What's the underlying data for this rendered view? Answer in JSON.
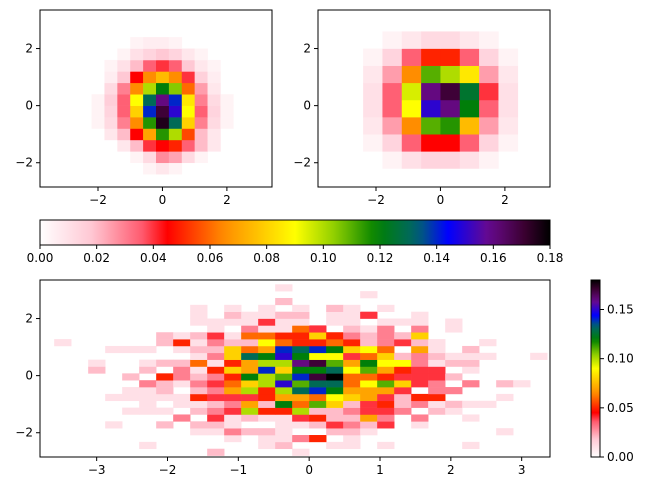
{
  "chart_data": [
    {
      "id": "top-left",
      "type": "heatmap",
      "xlim": [
        -3.8,
        3.4
      ],
      "ylim": [
        -2.85,
        3.35
      ],
      "xticks": [
        -2,
        0,
        2
      ],
      "yticks": [
        -2,
        0,
        2
      ],
      "xticklabels": [
        "−2",
        "0",
        "2"
      ],
      "yticklabels": [
        "−2",
        "0",
        "2"
      ],
      "x0": -3.0,
      "y0": -2.8,
      "bin": 0.4,
      "grid": [
        [
          0,
          0,
          0,
          0,
          0,
          0,
          0,
          0,
          0,
          0,
          0,
          0,
          0,
          0,
          0
        ],
        [
          0,
          0,
          0,
          0,
          0,
          0,
          0.004,
          0.008,
          0.004,
          0,
          0,
          0,
          0,
          0,
          0
        ],
        [
          0,
          0,
          0,
          0,
          0,
          0.004,
          0.012,
          0.028,
          0.024,
          0.012,
          0.004,
          0,
          0,
          0,
          0
        ],
        [
          0,
          0,
          0,
          0,
          0.008,
          0.02,
          0.04,
          0.045,
          0.05,
          0.035,
          0.02,
          0.008,
          0,
          0,
          0
        ],
        [
          0,
          0,
          0,
          0.008,
          0.02,
          0.045,
          0.07,
          0.115,
          0.1,
          0.055,
          0.02,
          0.008,
          0,
          0,
          0
        ],
        [
          0,
          0,
          0.004,
          0.012,
          0.03,
          0.065,
          0.115,
          0.175,
          0.13,
          0.08,
          0.03,
          0.012,
          0.004,
          0,
          0
        ],
        [
          0,
          0,
          0.004,
          0.014,
          0.035,
          0.08,
          0.14,
          0.17,
          0.15,
          0.09,
          0.035,
          0.014,
          0.004,
          0,
          0
        ],
        [
          0,
          0,
          0.004,
          0.016,
          0.035,
          0.09,
          0.13,
          0.16,
          0.14,
          0.085,
          0.03,
          0.012,
          0.004,
          0,
          0
        ],
        [
          0,
          0,
          0,
          0.012,
          0.03,
          0.065,
          0.1,
          0.12,
          0.105,
          0.06,
          0.025,
          0.008,
          0,
          0,
          0
        ],
        [
          0,
          0,
          0,
          0.006,
          0.018,
          0.045,
          0.065,
          0.075,
          0.065,
          0.04,
          0.015,
          0.006,
          0,
          0,
          0
        ],
        [
          0,
          0,
          0,
          0.004,
          0.01,
          0.02,
          0.035,
          0.04,
          0.035,
          0.018,
          0.008,
          0.004,
          0,
          0,
          0
        ],
        [
          0,
          0,
          0,
          0,
          0.004,
          0.01,
          0.014,
          0.018,
          0.014,
          0.008,
          0.004,
          0,
          0,
          0,
          0
        ],
        [
          0,
          0,
          0,
          0,
          0,
          0.004,
          0.006,
          0.006,
          0.004,
          0,
          0,
          0,
          0,
          0,
          0
        ],
        [
          0,
          0,
          0,
          0,
          0,
          0,
          0,
          0,
          0,
          0,
          0,
          0,
          0,
          0,
          0
        ],
        [
          0,
          0,
          0,
          0,
          0,
          0,
          0,
          0,
          0,
          0,
          0,
          0,
          0,
          0,
          0
        ]
      ]
    },
    {
      "id": "top-right",
      "type": "heatmap",
      "xlim": [
        -3.8,
        3.4
      ],
      "ylim": [
        -2.85,
        3.35
      ],
      "xticks": [
        -2,
        0,
        2
      ],
      "yticks": [
        -2,
        0,
        2
      ],
      "xticklabels": [
        "−2",
        "0",
        "2"
      ],
      "yticklabels": [
        "−2",
        "0",
        "2"
      ],
      "x0": -3.0,
      "y0": -2.8,
      "bin": 0.6,
      "grid": [
        [
          0,
          0,
          0,
          0,
          0,
          0,
          0,
          0,
          0,
          0
        ],
        [
          0,
          0,
          0.004,
          0.01,
          0.014,
          0.014,
          0.01,
          0.004,
          0,
          0
        ],
        [
          0,
          0.004,
          0.014,
          0.035,
          0.045,
          0.045,
          0.035,
          0.014,
          0.004,
          0
        ],
        [
          0,
          0.008,
          0.025,
          0.065,
          0.11,
          0.115,
          0.075,
          0.025,
          0.008,
          0
        ],
        [
          0,
          0.01,
          0.035,
          0.09,
          0.15,
          0.16,
          0.12,
          0.035,
          0.01,
          0
        ],
        [
          0,
          0.01,
          0.035,
          0.095,
          0.16,
          0.17,
          0.125,
          0.04,
          0.01,
          0
        ],
        [
          0,
          0.008,
          0.025,
          0.065,
          0.11,
          0.1,
          0.085,
          0.025,
          0.008,
          0
        ],
        [
          0,
          0.004,
          0.014,
          0.035,
          0.05,
          0.05,
          0.035,
          0.014,
          0.004,
          0
        ],
        [
          0,
          0,
          0.004,
          0.008,
          0.012,
          0.012,
          0.008,
          0.004,
          0,
          0
        ],
        [
          0,
          0,
          0,
          0,
          0,
          0,
          0,
          0,
          0,
          0
        ]
      ]
    },
    {
      "id": "bottom",
      "type": "heatmap",
      "xlim": [
        -3.8,
        3.4
      ],
      "ylim": [
        -2.85,
        3.35
      ],
      "xticks": [
        -3,
        -2,
        -1,
        0,
        1,
        2,
        3
      ],
      "yticks": [
        -2,
        0,
        2
      ],
      "xticklabels": [
        "−3",
        "−2",
        "−1",
        "0",
        "1",
        "2",
        "3"
      ],
      "yticklabels": [
        "−2",
        "0",
        "2"
      ],
      "x0": -3.6,
      "y0": -2.8,
      "bin": 0.24,
      "vmax": 0.18
    },
    {
      "id": "colorbar-horizontal",
      "type": "colorbar",
      "orientation": "horizontal",
      "range": [
        0,
        0.18
      ],
      "ticks": [
        0,
        0.02,
        0.04,
        0.06,
        0.08,
        0.1,
        0.12,
        0.14,
        0.16,
        0.18
      ],
      "ticklabels": [
        "0.00",
        "0.02",
        "0.04",
        "0.06",
        "0.08",
        "0.10",
        "0.12",
        "0.14",
        "0.16",
        "0.18"
      ]
    },
    {
      "id": "colorbar-vertical",
      "type": "colorbar",
      "orientation": "vertical",
      "range": [
        0,
        0.18
      ],
      "ticks": [
        0,
        0.05,
        0.1,
        0.15
      ],
      "ticklabels": [
        "0.00",
        "0.05",
        "0.10",
        "0.15"
      ]
    }
  ],
  "colormap": {
    "name": "gist_ncar-like pink-red-yellow-green-blue-purple-black",
    "stops": [
      [
        0.0,
        "#ffffff"
      ],
      [
        0.1,
        "#ffc8d4"
      ],
      [
        0.2,
        "#ff5a6e"
      ],
      [
        0.25,
        "#ff0000"
      ],
      [
        0.36,
        "#ff8c00"
      ],
      [
        0.5,
        "#ffff00"
      ],
      [
        0.58,
        "#8ccd00"
      ],
      [
        0.66,
        "#008000"
      ],
      [
        0.74,
        "#00646e"
      ],
      [
        0.8,
        "#0000ff"
      ],
      [
        0.88,
        "#6a0a8c"
      ],
      [
        0.95,
        "#3a0030"
      ],
      [
        1.0,
        "#000000"
      ]
    ]
  }
}
